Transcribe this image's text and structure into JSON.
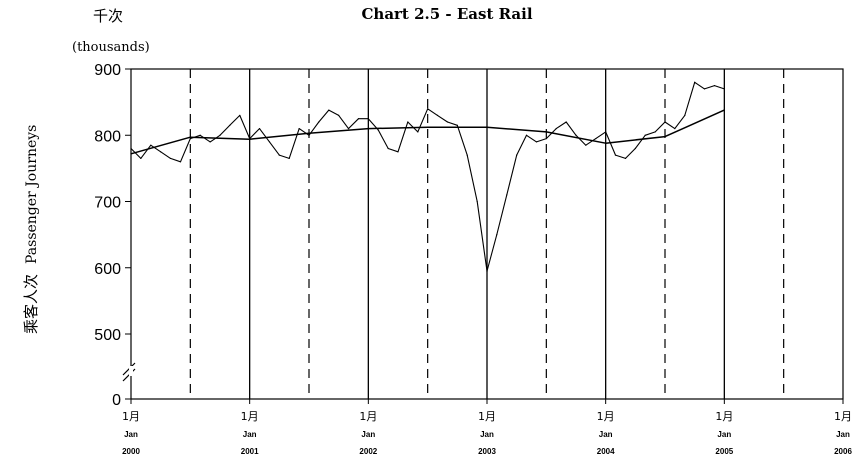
{
  "chart_data": {
    "type": "line",
    "title": "Chart 2.5 -  East Rail",
    "unit_cn": "千次",
    "unit_en": "(thousands)",
    "ylabel_cn": "乘客人次",
    "ylabel_en": "Passenger Journeys",
    "yticks": [
      0,
      500,
      600,
      700,
      800,
      900
    ],
    "ylim": [
      450,
      900
    ],
    "axis_break": true,
    "xlim": [
      2000.0,
      2006.0
    ],
    "xtick_labels": [
      {
        "month": "1月",
        "jan": "Jan",
        "year": "2000"
      },
      {
        "month": "1月",
        "jan": "Jan",
        "year": "2001"
      },
      {
        "month": "1月",
        "jan": "Jan",
        "year": "2002"
      },
      {
        "month": "1月",
        "jan": "Jan",
        "year": "2003"
      },
      {
        "month": "1月",
        "jan": "Jan",
        "year": "2004"
      },
      {
        "month": "1月",
        "jan": "Jan",
        "year": "2005"
      },
      {
        "month": "1月",
        "jan": "Jan",
        "year": "2006"
      }
    ],
    "grid": {
      "solid_at_years": true,
      "dashed_at_mid_years": true
    },
    "series": [
      {
        "style": "actual",
        "x": [
          2000.0,
          2000.083,
          2000.167,
          2000.25,
          2000.333,
          2000.417,
          2000.5,
          2000.583,
          2000.667,
          2000.75,
          2000.833,
          2000.917,
          2001.0,
          2001.083,
          2001.167,
          2001.25,
          2001.333,
          2001.417,
          2001.5,
          2001.583,
          2001.667,
          2001.75,
          2001.833,
          2001.917,
          2002.0,
          2002.083,
          2002.167,
          2002.25,
          2002.333,
          2002.417,
          2002.5,
          2002.583,
          2002.667,
          2002.75,
          2002.833,
          2002.917,
          2003.0,
          2003.083,
          2003.167,
          2003.25,
          2003.333,
          2003.417,
          2003.5,
          2003.583,
          2003.667,
          2003.75,
          2003.833,
          2003.917,
          2004.0,
          2004.083,
          2004.167,
          2004.25,
          2004.333,
          2004.417,
          2004.5,
          2004.583,
          2004.667,
          2004.75,
          2004.833,
          2004.917,
          2005.0
        ],
        "y": [
          780,
          765,
          785,
          775,
          765,
          760,
          795,
          800,
          790,
          800,
          815,
          830,
          795,
          810,
          790,
          770,
          765,
          810,
          800,
          820,
          838,
          830,
          810,
          825,
          825,
          808,
          780,
          775,
          820,
          805,
          840,
          830,
          820,
          815,
          770,
          700,
          595,
          650,
          710,
          770,
          800,
          790,
          795,
          810,
          820,
          800,
          785,
          795,
          805,
          770,
          765,
          780,
          800,
          805,
          820,
          810,
          830,
          880,
          870,
          875,
          870
        ]
      },
      {
        "style": "trend",
        "x": [
          2000.0,
          2000.5,
          2001.0,
          2001.5,
          2002.0,
          2002.5,
          2003.0,
          2003.5,
          2004.0,
          2004.5,
          2005.0
        ],
        "y": [
          772,
          797,
          794,
          803,
          810,
          812,
          812,
          805,
          788,
          798,
          838
        ]
      }
    ]
  }
}
